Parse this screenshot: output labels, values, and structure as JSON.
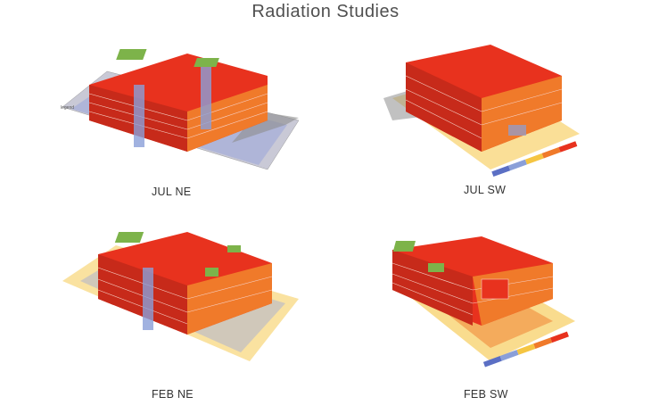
{
  "title": "Radiation Studies",
  "colors": {
    "hot": "#e8321e",
    "warm": "#f07a2a",
    "mid": "#f5c542",
    "cool": "#8a9fd8",
    "cold": "#5b6fc4",
    "shadow": "#b9b9b9",
    "green": "#7db34a"
  },
  "panels": [
    {
      "id": "jul-ne",
      "caption": "JUL NE"
    },
    {
      "id": "jul-sw",
      "caption": "JUL SW"
    },
    {
      "id": "feb-ne",
      "caption": "FEB NE"
    },
    {
      "id": "feb-sw",
      "caption": "FEB SW"
    }
  ]
}
